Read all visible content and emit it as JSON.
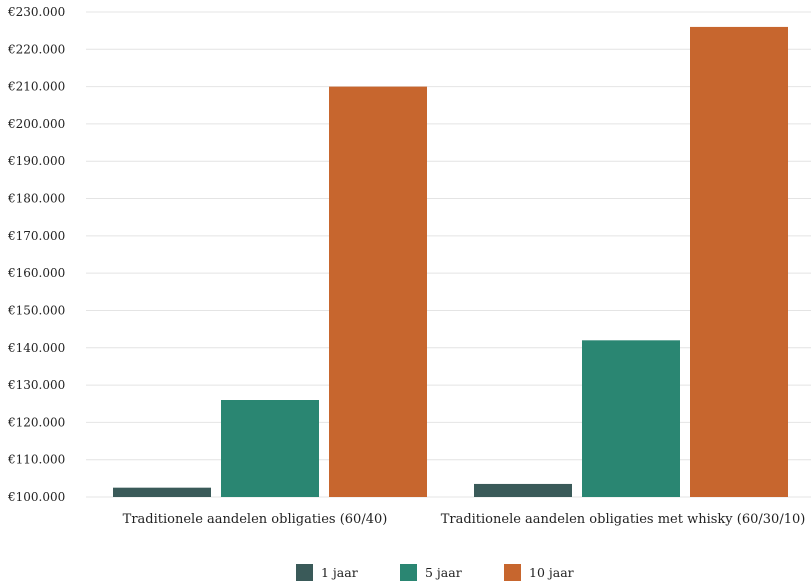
{
  "chart_data": {
    "type": "bar",
    "categories": [
      "Traditionele aandelen obligaties (60/40)",
      "Traditionele aandelen obligaties met whisky (60/30/10)"
    ],
    "series": [
      {
        "name": "1 jaar",
        "values": [
          102500,
          103500
        ]
      },
      {
        "name": "5 jaar",
        "values": [
          126000,
          142000
        ]
      },
      {
        "name": "10 jaar",
        "values": [
          210000,
          226000
        ]
      }
    ],
    "ylim": [
      100000,
      230000
    ],
    "y_ticks": [
      100000,
      110000,
      120000,
      130000,
      140000,
      150000,
      160000,
      170000,
      180000,
      190000,
      200000,
      210000,
      220000,
      230000
    ],
    "y_tick_labels": [
      "€100.000",
      "€110.000",
      "€120.000",
      "€130.000",
      "€140.000",
      "€150.000",
      "€160.000",
      "€170.000",
      "€180.000",
      "€190.000",
      "€200.000",
      "€210.000",
      "€220.000",
      "€230.000"
    ],
    "grid": true,
    "legend_position": "bottom",
    "colors": [
      "#3a5a59",
      "#2a8672",
      "#c7662e"
    ],
    "gridline_color": "#e4e4e4"
  }
}
